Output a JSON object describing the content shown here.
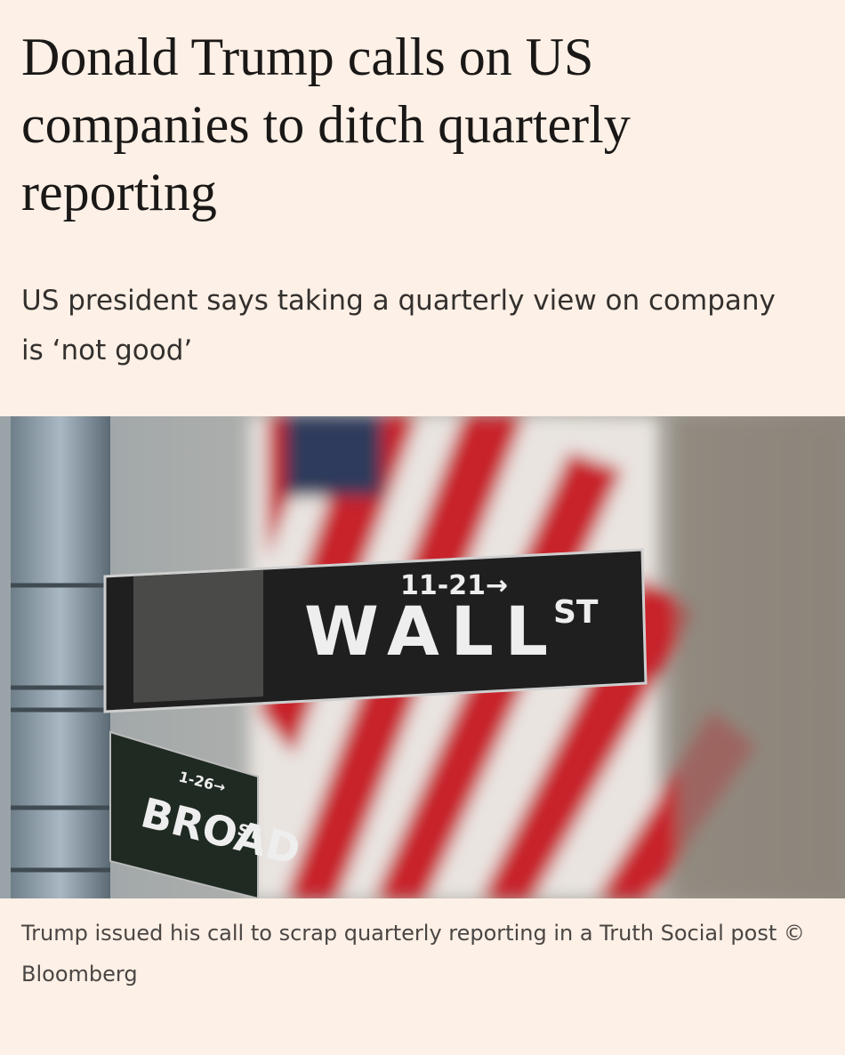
{
  "header": {
    "title": "Donald Trump calls on US companies to ditch quarterly reporting",
    "standfirst": "US president says taking a quarterly view on company is ‘not good’"
  },
  "image": {
    "signs": {
      "wall_number": "11-21→",
      "wall_name": "WALL",
      "wall_suffix": "ST",
      "broad_number": "1-26→",
      "broad_name": "BROAD",
      "broad_suffix": "ST"
    },
    "caption": "Trump issued his call to scrap quarterly reporting in a Truth Social post © Bloomberg"
  }
}
